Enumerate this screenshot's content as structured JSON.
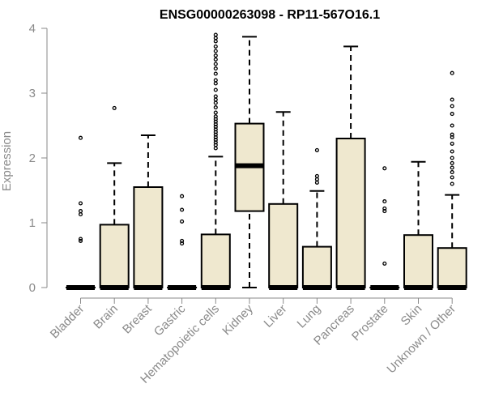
{
  "chart_data": {
    "type": "boxplot",
    "title": "ENSG00000263098 - RP11-567O16.1",
    "ylabel": "Expression",
    "xlabel": "",
    "ylim": [
      0,
      4
    ],
    "yticks": [
      0,
      1,
      2,
      3,
      4
    ],
    "grid": false,
    "legend": "none",
    "box_fill": "#efe8cf",
    "box_stroke": "#000000",
    "axis_color": "#8a8a8a",
    "categories": [
      "Bladder",
      "Brain",
      "Breast",
      "Gastric",
      "Hematopoietic cells",
      "Kidney",
      "Liver",
      "Lung",
      "Pancreas",
      "Prostate",
      "Skin",
      "Unknown / Other"
    ],
    "boxes": [
      {
        "category": "Bladder",
        "min": 0,
        "q1": 0,
        "median": 0,
        "q3": 0,
        "max": 0,
        "outliers": [
          0.72,
          0.75,
          1.13,
          1.18,
          1.3,
          2.31
        ]
      },
      {
        "category": "Brain",
        "min": 0,
        "q1": 0,
        "median": 0,
        "q3": 0.97,
        "max": 1.92,
        "outliers": [
          2.77
        ]
      },
      {
        "category": "Breast",
        "min": 0,
        "q1": 0,
        "median": 0,
        "q3": 1.55,
        "max": 2.35,
        "outliers": []
      },
      {
        "category": "Gastric",
        "min": 0,
        "q1": 0,
        "median": 0,
        "q3": 0,
        "max": 0,
        "outliers": [
          0.68,
          0.72,
          1.02,
          1.2,
          1.41
        ]
      },
      {
        "category": "Hematopoietic cells",
        "min": 0,
        "q1": 0,
        "median": 0,
        "q3": 0.82,
        "max": 2.02,
        "outliers": [
          2.15,
          2.2,
          2.24,
          2.28,
          2.32,
          2.36,
          2.4,
          2.44,
          2.48,
          2.52,
          2.56,
          2.6,
          2.64,
          2.7,
          2.78,
          2.85,
          2.9,
          2.95,
          3.05,
          3.15,
          3.2,
          3.3,
          3.38,
          3.45,
          3.52,
          3.58,
          3.65,
          3.72,
          3.8,
          3.85,
          3.9
        ]
      },
      {
        "category": "Kidney",
        "min": 0,
        "q1": 1.18,
        "median": 1.88,
        "q3": 2.53,
        "max": 3.87,
        "outliers": []
      },
      {
        "category": "Liver",
        "min": 0,
        "q1": 0,
        "median": 0,
        "q3": 1.29,
        "max": 2.71,
        "outliers": []
      },
      {
        "category": "Lung",
        "min": 0,
        "q1": 0,
        "median": 0,
        "q3": 0.63,
        "max": 1.49,
        "outliers": [
          1.62,
          1.67,
          1.72,
          2.12
        ]
      },
      {
        "category": "Pancreas",
        "min": 0,
        "q1": 0,
        "median": 0,
        "q3": 2.3,
        "max": 3.72,
        "outliers": []
      },
      {
        "category": "Prostate",
        "min": 0,
        "q1": 0,
        "median": 0,
        "q3": 0,
        "max": 0,
        "outliers": [
          0.37,
          1.18,
          1.22,
          1.33,
          1.84
        ]
      },
      {
        "category": "Skin",
        "min": 0,
        "q1": 0,
        "median": 0,
        "q3": 0.81,
        "max": 1.94,
        "outliers": []
      },
      {
        "category": "Unknown / Other",
        "min": 0,
        "q1": 0,
        "median": 0,
        "q3": 0.61,
        "max": 1.43,
        "outliers": [
          1.6,
          1.7,
          1.78,
          1.85,
          1.92,
          2.0,
          2.1,
          2.22,
          2.32,
          2.36,
          2.5,
          2.68,
          2.8,
          2.9,
          3.31
        ]
      }
    ]
  }
}
